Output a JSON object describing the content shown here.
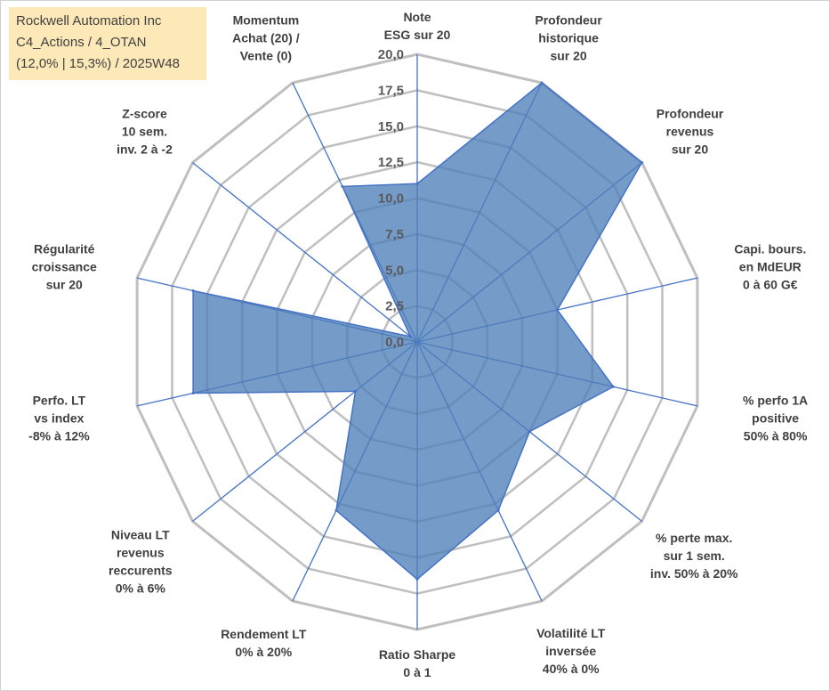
{
  "header": {
    "line1": "Rockwell Automation Inc",
    "line2": "C4_Actions / 4_OTAN",
    "line3": "(12,0% | 15,3%) / 2025W48"
  },
  "chart_data": {
    "type": "radar",
    "title": "",
    "range": [
      0,
      20
    ],
    "ticks": [
      "0,0",
      "2,5",
      "5,0",
      "7,5",
      "10,0",
      "12,5",
      "15,0",
      "17,5",
      "20,0"
    ],
    "axes": [
      {
        "label": [
          "Note",
          "ESG sur 20"
        ],
        "value": 11.0
      },
      {
        "label": [
          "Profondeur",
          "historique",
          "sur 20"
        ],
        "value": 20.0
      },
      {
        "label": [
          "Profondeur",
          "revenus",
          "sur 20"
        ],
        "value": 20.0
      },
      {
        "label": [
          "Capi. bours.",
          "en MdEUR",
          "0 à 60 G€"
        ],
        "value": 10.0
      },
      {
        "label": [
          "% perfo 1A",
          "positive",
          "50% à 80%"
        ],
        "value": 14.0
      },
      {
        "label": [
          "% perte max.",
          "sur 1 sem.",
          "inv. 50% à 20%"
        ],
        "value": 10.0
      },
      {
        "label": [
          "Volatilité LT",
          "inversée",
          "40% à 0%"
        ],
        "value": 13.0
      },
      {
        "label": [
          "Ratio Sharpe",
          "0 à 1"
        ],
        "value": 16.5
      },
      {
        "label": [
          "Rendement LT",
          "0% à 20%"
        ],
        "value": 13.0
      },
      {
        "label": [
          "Niveau LT",
          "revenus",
          "reccurents",
          "0% à 6%"
        ],
        "value": 5.5
      },
      {
        "label": [
          "Perfo. LT",
          "vs index",
          "-8% à 12%"
        ],
        "value": 16.0
      },
      {
        "label": [
          "Régularité",
          "croissance",
          "sur 20"
        ],
        "value": 16.0
      },
      {
        "label": [
          "Z-score",
          "10 sem.",
          "inv. 2 à -2"
        ],
        "value": 0.6
      },
      {
        "label": [
          "Momentum",
          "Achat (20) /",
          "Vente (0)"
        ],
        "value": 12.0
      }
    ],
    "series": [
      {
        "name": "Rockwell Automation Inc",
        "color": "#4e7fb8"
      }
    ],
    "colors": {
      "fill": "#4e7fb8",
      "stroke": "#4472c4",
      "grid": "#bfbfbf",
      "spoke": "#4472c4"
    }
  }
}
